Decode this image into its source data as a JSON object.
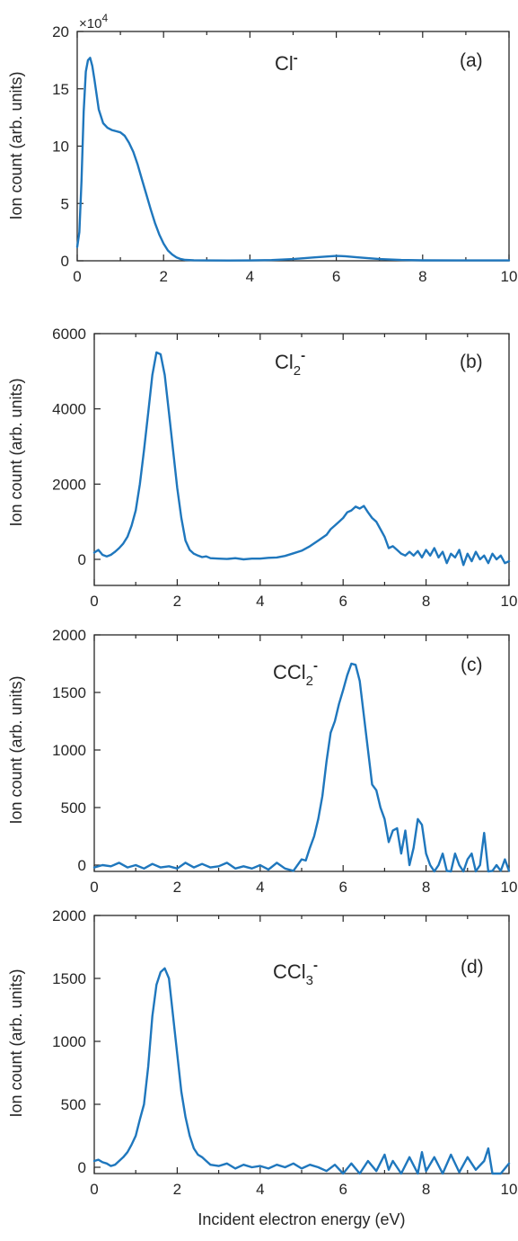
{
  "colors": {
    "series": "#1f77bd",
    "axes": "#262626"
  },
  "chart_data": [
    {
      "type": "line",
      "panel": "(a)",
      "ion": {
        "base": "Cl",
        "sub": "",
        "sup": "-"
      },
      "ylabel": "Ion count (arb. units)",
      "xlabel": "",
      "exponent_label": "×10",
      "exponent_power": "4",
      "xlim": [
        0,
        10
      ],
      "ylim": [
        0,
        20
      ],
      "xticks": [
        0,
        2,
        4,
        6,
        8,
        10
      ],
      "yticks": [
        0,
        5,
        10,
        15,
        20
      ],
      "tick_labels_x": [
        "0",
        "2",
        "4",
        "6",
        "8",
        "10"
      ],
      "tick_labels_y": [
        "0",
        "5",
        "10",
        "15",
        "20"
      ],
      "grid": false,
      "series": [
        {
          "x": [
            0,
            0.05,
            0.1,
            0.15,
            0.2,
            0.25,
            0.3,
            0.35,
            0.4,
            0.5,
            0.6,
            0.7,
            0.8,
            0.9,
            1.0,
            1.1,
            1.2,
            1.3,
            1.4,
            1.5,
            1.6,
            1.7,
            1.8,
            1.9,
            2.0,
            2.1,
            2.2,
            2.3,
            2.4,
            2.5,
            2.7,
            3.0,
            3.5,
            4.0,
            4.5,
            5.0,
            5.5,
            5.8,
            6.0,
            6.2,
            6.5,
            7.0,
            7.5,
            8.0,
            9.0,
            10.0
          ],
          "y": [
            1.2,
            2.5,
            7.0,
            13.0,
            16.5,
            17.5,
            17.7,
            17.0,
            15.8,
            13.2,
            12.0,
            11.6,
            11.4,
            11.3,
            11.2,
            10.9,
            10.3,
            9.5,
            8.4,
            7.1,
            5.8,
            4.5,
            3.3,
            2.3,
            1.5,
            0.9,
            0.55,
            0.3,
            0.15,
            0.08,
            0.05,
            0.03,
            0.02,
            0.03,
            0.06,
            0.15,
            0.3,
            0.38,
            0.42,
            0.4,
            0.3,
            0.15,
            0.07,
            0.04,
            0.03,
            0.03
          ]
        }
      ]
    },
    {
      "type": "line",
      "panel": "(b)",
      "ion": {
        "base": "Cl",
        "sub": "2",
        "sup": "-"
      },
      "ylabel": "Ion count (arb. units)",
      "xlabel": "",
      "xlim": [
        0,
        10
      ],
      "ylim": [
        0,
        6000
      ],
      "xticks": [
        0,
        2,
        4,
        6,
        8,
        10
      ],
      "yticks": [
        0,
        2000,
        4000,
        6000
      ],
      "tick_labels_x": [
        "0",
        "2",
        "4",
        "6",
        "8",
        "10"
      ],
      "tick_labels_y": [
        "0",
        "2000",
        "4000",
        "6000"
      ],
      "grid": false,
      "series": [
        {
          "x": [
            0,
            0.1,
            0.2,
            0.3,
            0.4,
            0.5,
            0.6,
            0.7,
            0.8,
            0.9,
            1.0,
            1.1,
            1.2,
            1.3,
            1.4,
            1.5,
            1.6,
            1.7,
            1.8,
            1.9,
            2.0,
            2.1,
            2.2,
            2.3,
            2.4,
            2.5,
            2.6,
            2.7,
            2.8,
            3.0,
            3.2,
            3.4,
            3.6,
            3.8,
            4.0,
            4.2,
            4.4,
            4.6,
            4.8,
            5.0,
            5.2,
            5.4,
            5.6,
            5.7,
            5.8,
            5.9,
            6.0,
            6.1,
            6.2,
            6.3,
            6.4,
            6.5,
            6.6,
            6.7,
            6.8,
            6.9,
            7.0,
            7.1,
            7.2,
            7.3,
            7.4,
            7.5,
            7.6,
            7.7,
            7.8,
            7.9,
            8.0,
            8.1,
            8.2,
            8.3,
            8.4,
            8.5,
            8.6,
            8.7,
            8.8,
            8.9,
            9.0,
            9.1,
            9.2,
            9.3,
            9.4,
            9.5,
            9.6,
            9.7,
            9.8,
            9.9,
            10.0
          ],
          "y": [
            180,
            250,
            120,
            80,
            120,
            200,
            300,
            420,
            600,
            900,
            1300,
            2000,
            2900,
            3900,
            4900,
            5500,
            5450,
            4900,
            3900,
            2900,
            1900,
            1100,
            500,
            250,
            150,
            100,
            60,
            80,
            30,
            20,
            10,
            30,
            0,
            20,
            20,
            40,
            50,
            90,
            160,
            230,
            350,
            500,
            650,
            800,
            900,
            1000,
            1100,
            1250,
            1300,
            1400,
            1350,
            1420,
            1250,
            1100,
            1000,
            800,
            600,
            300,
            350,
            250,
            150,
            100,
            200,
            100,
            220,
            50,
            250,
            100,
            300,
            50,
            200,
            -100,
            150,
            50,
            250,
            -150,
            150,
            -50,
            200,
            0,
            100,
            -100,
            150,
            0,
            100,
            -100,
            -50
          ]
        }
      ]
    },
    {
      "type": "line",
      "panel": "(c)",
      "ion": {
        "base": "CCl",
        "sub": "2",
        "sup": "-"
      },
      "ylabel": "Ion count (arb. units)",
      "xlabel": "",
      "xlim": [
        0,
        10
      ],
      "ylim": [
        0,
        2000
      ],
      "xticks": [
        0,
        2,
        4,
        6,
        8,
        10
      ],
      "yticks": [
        0,
        500,
        1000,
        1500,
        2000
      ],
      "tick_labels_x": [
        "0",
        "2",
        "4",
        "6",
        "8",
        "10"
      ],
      "tick_labels_y": [
        "0",
        "500",
        "1000",
        "1500",
        "2000"
      ],
      "grid": false,
      "series": [
        {
          "x": [
            0,
            0.2,
            0.4,
            0.6,
            0.8,
            1.0,
            1.2,
            1.4,
            1.6,
            1.8,
            2.0,
            2.2,
            2.4,
            2.6,
            2.8,
            3.0,
            3.2,
            3.4,
            3.6,
            3.8,
            4.0,
            4.2,
            4.4,
            4.6,
            4.8,
            5.0,
            5.1,
            5.2,
            5.3,
            5.4,
            5.5,
            5.6,
            5.7,
            5.8,
            5.9,
            6.0,
            6.1,
            6.2,
            6.3,
            6.4,
            6.5,
            6.6,
            6.7,
            6.8,
            6.9,
            7.0,
            7.1,
            7.2,
            7.3,
            7.4,
            7.5,
            7.6,
            7.7,
            7.8,
            7.9,
            8.0,
            8.1,
            8.2,
            8.3,
            8.4,
            8.5,
            8.6,
            8.7,
            8.8,
            8.9,
            9.0,
            9.1,
            9.2,
            9.3,
            9.4,
            9.5,
            9.6,
            9.7,
            9.8,
            9.9,
            10.0
          ],
          "y": [
            -20,
            0,
            -10,
            20,
            -20,
            0,
            -30,
            10,
            -20,
            -10,
            -30,
            20,
            -20,
            10,
            -20,
            -10,
            20,
            -30,
            -10,
            -30,
            0,
            -40,
            20,
            -30,
            -50,
            50,
            40,
            150,
            250,
            400,
            600,
            900,
            1150,
            1250,
            1400,
            1520,
            1650,
            1750,
            1740,
            1600,
            1300,
            1000,
            700,
            650,
            500,
            400,
            200,
            300,
            320,
            100,
            300,
            0,
            150,
            400,
            350,
            100,
            0,
            -100,
            0,
            100,
            -50,
            -100,
            100,
            0,
            -100,
            50,
            100,
            -100,
            0,
            280,
            -100,
            -50,
            0,
            -50,
            50,
            -50
          ]
        }
      ]
    },
    {
      "type": "line",
      "panel": "(d)",
      "ion": {
        "base": "CCl",
        "sub": "3",
        "sup": "-"
      },
      "ylabel": "Ion count (arb. units)",
      "xlabel": "Incident electron energy (eV)",
      "xlim": [
        0,
        10
      ],
      "ylim": [
        0,
        2000
      ],
      "xticks": [
        0,
        2,
        4,
        6,
        8,
        10
      ],
      "yticks": [
        0,
        500,
        1000,
        1500,
        2000
      ],
      "tick_labels_x": [
        "0",
        "2",
        "4",
        "6",
        "8",
        "10"
      ],
      "tick_labels_y": [
        "0",
        "500",
        "1000",
        "1500",
        "2000"
      ],
      "grid": false,
      "series": [
        {
          "x": [
            0,
            0.1,
            0.2,
            0.3,
            0.4,
            0.5,
            0.6,
            0.7,
            0.8,
            0.9,
            1.0,
            1.1,
            1.2,
            1.3,
            1.4,
            1.5,
            1.6,
            1.7,
            1.8,
            1.9,
            2.0,
            2.1,
            2.2,
            2.3,
            2.4,
            2.5,
            2.6,
            2.7,
            2.8,
            3.0,
            3.2,
            3.4,
            3.6,
            3.8,
            4.0,
            4.2,
            4.4,
            4.6,
            4.8,
            5.0,
            5.2,
            5.4,
            5.6,
            5.8,
            6.0,
            6.2,
            6.4,
            6.6,
            6.8,
            7.0,
            7.1,
            7.2,
            7.4,
            7.6,
            7.8,
            7.9,
            8.0,
            8.2,
            8.4,
            8.6,
            8.8,
            9.0,
            9.2,
            9.4,
            9.5,
            9.6,
            9.8,
            10.0
          ],
          "y": [
            50,
            60,
            40,
            30,
            10,
            20,
            50,
            80,
            120,
            180,
            250,
            380,
            500,
            800,
            1200,
            1450,
            1550,
            1580,
            1500,
            1200,
            900,
            600,
            400,
            250,
            150,
            100,
            80,
            50,
            20,
            10,
            30,
            -10,
            20,
            0,
            10,
            -10,
            20,
            0,
            30,
            -10,
            20,
            0,
            -30,
            20,
            -50,
            30,
            -60,
            50,
            -30,
            100,
            -20,
            50,
            -80,
            80,
            -50,
            120,
            -30,
            80,
            -60,
            100,
            -40,
            80,
            -20,
            50,
            150,
            -50,
            -80,
            30
          ]
        }
      ]
    }
  ]
}
